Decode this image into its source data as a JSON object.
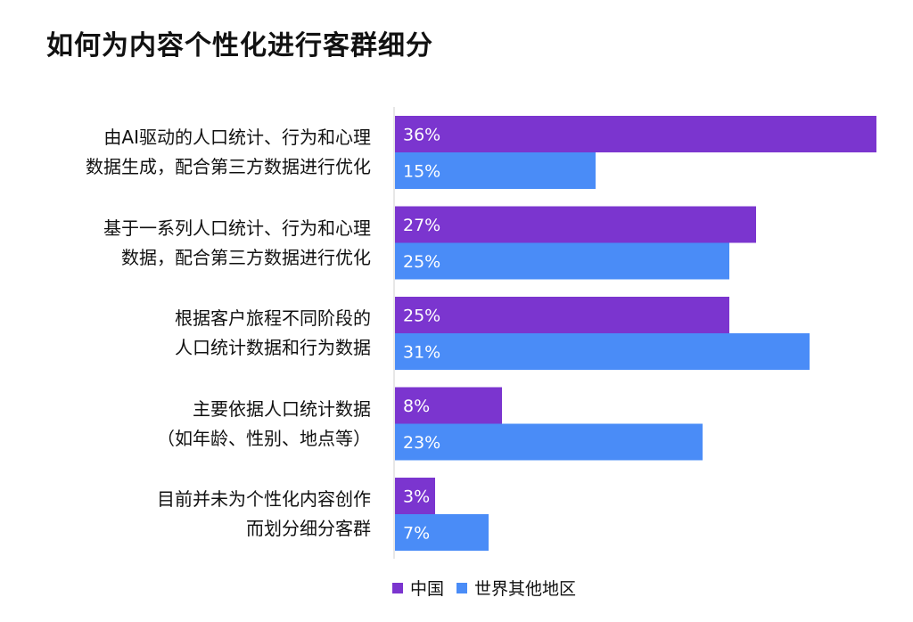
{
  "title": "如何为内容个性化进行客群细分",
  "chart_data": {
    "type": "bar",
    "orientation": "horizontal",
    "categories": [
      [
        "由AI驱动的人口统计、行为和心理",
        "数据生成，配合第三方数据进行优化"
      ],
      [
        "基于一系列人口统计、行为和心理",
        "数据，配合第三方数据进行优化"
      ],
      [
        "根据客户旅程不同阶段的",
        "人口统计数据和行为数据"
      ],
      [
        "主要依据人口统计数据",
        "（如年龄、性别、地点等）"
      ],
      [
        "目前并未为个性化内容创作",
        "而划分细分客群"
      ]
    ],
    "series": [
      {
        "name": "中国",
        "values": [
          36,
          27,
          25,
          8,
          3
        ],
        "labels": [
          "36%",
          "27%",
          "25%",
          "8%",
          "3%"
        ],
        "color": "#7b35cf"
      },
      {
        "name": "世界其他地区",
        "values": [
          15,
          25,
          31,
          23,
          7
        ],
        "labels": [
          "15%",
          "25%",
          "31%",
          "23%",
          "7%"
        ],
        "color": "#4a8cf7"
      }
    ],
    "xlim": [
      0,
      36
    ],
    "legend_position": "bottom"
  }
}
